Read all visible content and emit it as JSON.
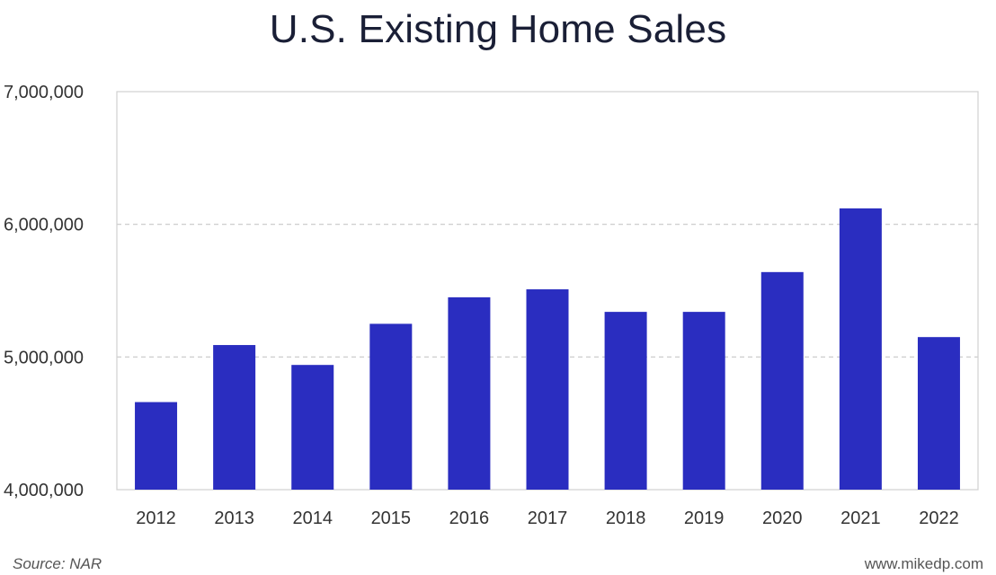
{
  "chart_data": {
    "type": "bar",
    "title": "U.S. Existing Home Sales",
    "categories": [
      "2012",
      "2013",
      "2014",
      "2015",
      "2016",
      "2017",
      "2018",
      "2019",
      "2020",
      "2021",
      "2022"
    ],
    "series": [
      {
        "name": "Existing Home Sales",
        "values": [
          4660000,
          5090000,
          4940000,
          5250000,
          5450000,
          5510000,
          5340000,
          5340000,
          5640000,
          6120000,
          5150000
        ]
      }
    ],
    "xlabel": "",
    "ylabel": "",
    "ylim": [
      4000000,
      7000000
    ],
    "yticks": [
      4000000,
      5000000,
      6000000,
      7000000
    ],
    "ytick_labels": [
      "4,000,000",
      "5,000,000",
      "6,000,000",
      "7,000,000"
    ],
    "grid": "horizontal dashed",
    "bar_color": "#2a2dc0"
  },
  "footer": {
    "source": "Source: NAR",
    "credit": "www.mikedp.com"
  }
}
